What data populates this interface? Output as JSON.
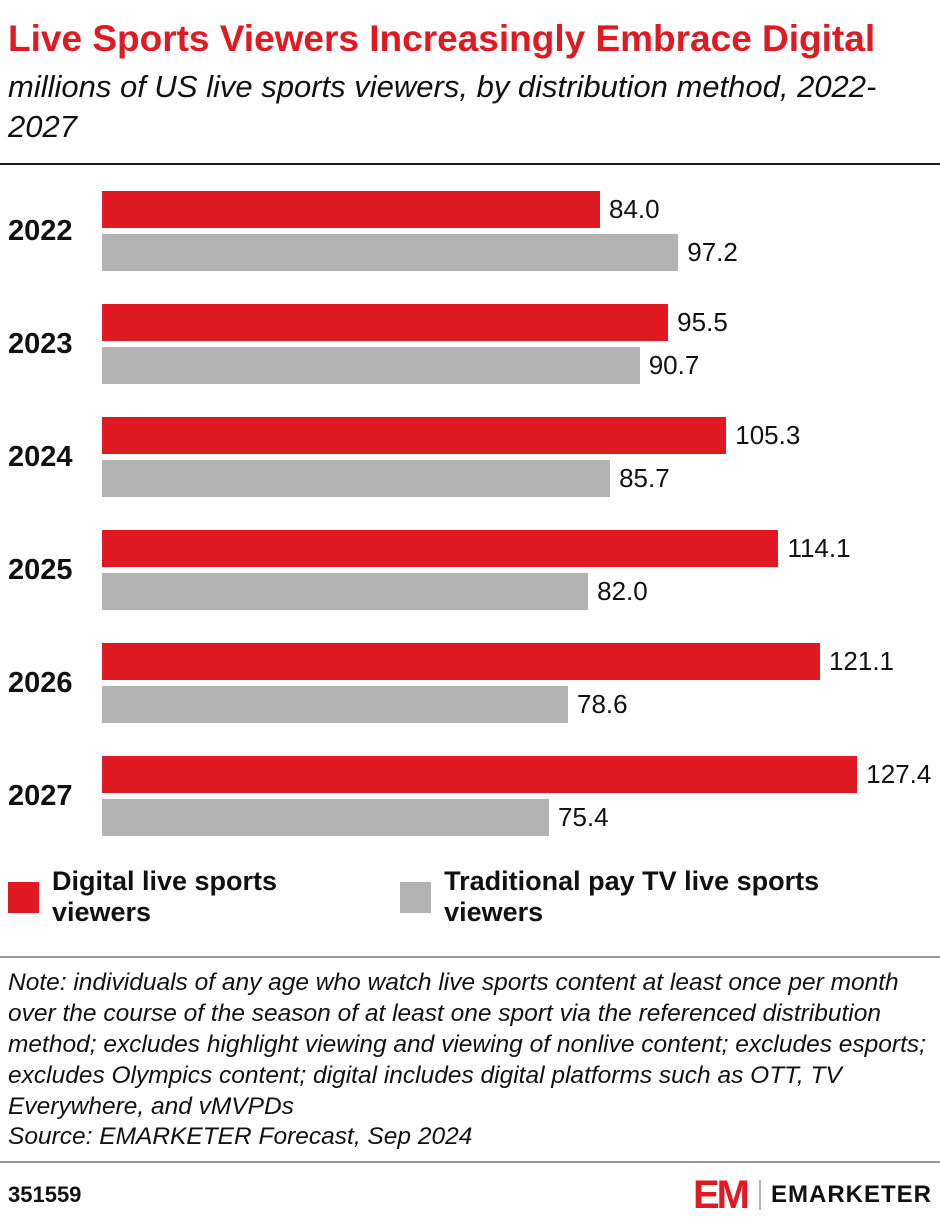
{
  "header": {
    "title": "Live Sports Viewers Increasingly Embrace Digital",
    "subtitle": "millions of US live sports viewers, by distribution method, 2022-2027"
  },
  "colors": {
    "accent_red": "#e01a23",
    "bar_gray": "#b3b3b3"
  },
  "chart_data": {
    "type": "bar",
    "orientation": "horizontal",
    "title": "Live Sports Viewers Increasingly Embrace Digital",
    "subtitle": "millions of US live sports viewers, by distribution method, 2022-2027",
    "categories": [
      "2022",
      "2023",
      "2024",
      "2025",
      "2026",
      "2027"
    ],
    "series": [
      {
        "name": "Digital live sports viewers",
        "color": "#e01a23",
        "values": [
          84.0,
          95.5,
          105.3,
          114.1,
          121.1,
          127.4
        ]
      },
      {
        "name": "Traditional pay TV live sports viewers",
        "color": "#b3b3b3",
        "values": [
          97.2,
          90.7,
          85.7,
          82.0,
          78.6,
          75.4
        ]
      }
    ],
    "xlim": [
      0,
      140
    ],
    "grid": false,
    "legend_position": "bottom",
    "value_labels": "end_of_bar_one_decimal"
  },
  "legend": {
    "items": [
      {
        "label": "Digital live sports viewers",
        "color": "#e01a23"
      },
      {
        "label": "Traditional pay TV live sports viewers",
        "color": "#b3b3b3"
      }
    ]
  },
  "footnote": {
    "note": "Note: individuals of any age who watch live sports content at least once per month over the course of the season of at least one sport via the referenced distribution method; excludes highlight viewing and viewing of nonlive content; excludes esports; excludes Olympics content; digital includes digital platforms such as OTT, TV Everywhere, and vMVPDs",
    "source": "Source: EMARKETER Forecast, Sep 2024"
  },
  "footer": {
    "chart_id": "351559",
    "brand_mark": "EM",
    "brand_name": "EMARKETER"
  }
}
